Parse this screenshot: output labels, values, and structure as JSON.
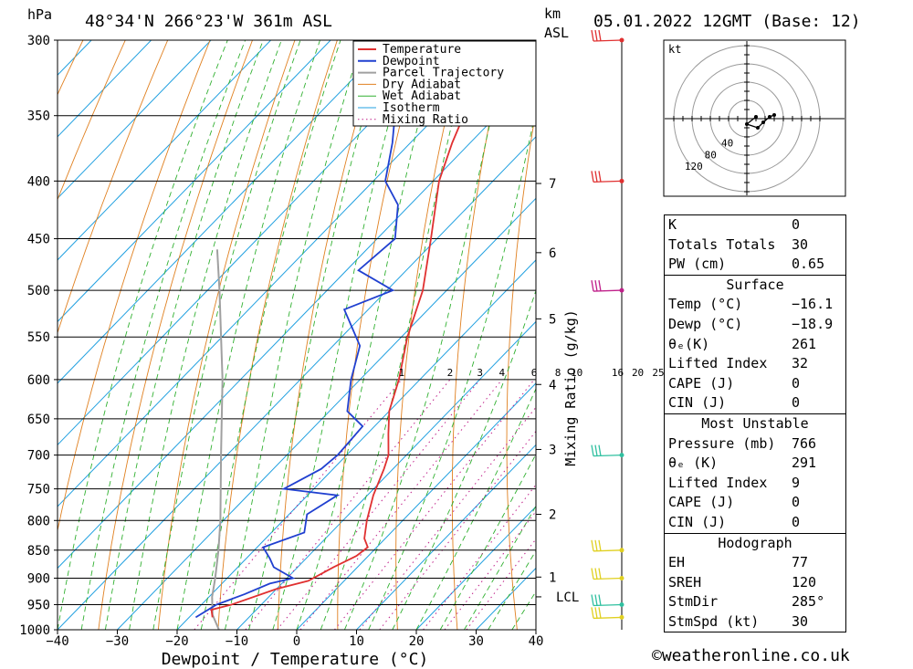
{
  "header": {
    "location": "48°34'N  266°23'W  361m  ASL",
    "pressure_unit": "hPa",
    "km_label": "km",
    "asl_label": "ASL",
    "datetime": "05.01.2022  12GMT  (Base: 12)"
  },
  "chart_data": {
    "type": "skew-t log-p",
    "xlabel": "Dewpoint / Temperature (°C)",
    "ylabel": "hPa",
    "right_axis_label": "Mixing Ratio (g/kg)",
    "xlim": [
      -40,
      40
    ],
    "ylim": [
      1000,
      300
    ],
    "x_ticks": [
      -40,
      -30,
      -20,
      -10,
      0,
      10,
      20,
      30,
      40
    ],
    "x_tick_labels": [
      "−40",
      "−30",
      "−20",
      "−10",
      "0",
      "10",
      "20",
      "30",
      "40"
    ],
    "pressure_levels": [
      300,
      350,
      400,
      450,
      500,
      550,
      600,
      650,
      700,
      750,
      800,
      850,
      900,
      950,
      1000
    ],
    "km_ticks": [
      {
        "km": 1,
        "p": 898
      },
      {
        "km": 2,
        "p": 790
      },
      {
        "km": 3,
        "p": 692
      },
      {
        "km": 4,
        "p": 606
      },
      {
        "km": 5,
        "p": 530
      },
      {
        "km": 6,
        "p": 463
      },
      {
        "km": 7,
        "p": 402
      }
    ],
    "lcl_label": "LCL",
    "lcl_p": 935,
    "mixing_ratios": [
      1,
      2,
      3,
      4,
      6,
      8,
      10,
      16,
      20,
      25
    ],
    "mixing_ratio_labels": [
      "1",
      "2",
      "3",
      "4",
      "6",
      "8",
      "10",
      "16",
      "20",
      "25"
    ],
    "legend": [
      "Temperature",
      "Dewpoint",
      "Parcel Trajectory",
      "Dry Adiabat",
      "Wet Adiabat",
      "Isotherm",
      "Mixing Ratio"
    ],
    "legend_position": "top-right",
    "colors": {
      "temperature": "#e03030",
      "dewpoint": "#2040d0",
      "parcel": "#a0a0a0",
      "dry_adiabat": "#e08020",
      "wet_adiabat": "#30b030",
      "isotherm": "#20a0e0",
      "mixing_ratio": "#c0208a"
    },
    "temperature": [
      {
        "p": 975,
        "t": -16.1
      },
      {
        "p": 960,
        "t": -17.5
      },
      {
        "p": 950,
        "t": -15.0
      },
      {
        "p": 920,
        "t": -10.0
      },
      {
        "p": 905,
        "t": -6.0
      },
      {
        "p": 880,
        "t": -4.0
      },
      {
        "p": 860,
        "t": -2.0
      },
      {
        "p": 845,
        "t": -1.5
      },
      {
        "p": 830,
        "t": -3.5
      },
      {
        "p": 800,
        "t": -6.0
      },
      {
        "p": 760,
        "t": -9.0
      },
      {
        "p": 720,
        "t": -11.5
      },
      {
        "p": 700,
        "t": -13.0
      },
      {
        "p": 670,
        "t": -16.5
      },
      {
        "p": 640,
        "t": -20.0
      },
      {
        "p": 600,
        "t": -23.5
      },
      {
        "p": 550,
        "t": -29.0
      },
      {
        "p": 500,
        "t": -34.0
      },
      {
        "p": 450,
        "t": -41.0
      },
      {
        "p": 400,
        "t": -49.0
      },
      {
        "p": 370,
        "t": -53.0
      },
      {
        "p": 350,
        "t": -55.5
      },
      {
        "p": 300,
        "t": -63.0
      }
    ],
    "dewpoint": [
      {
        "p": 975,
        "t": -18.9
      },
      {
        "p": 950,
        "t": -17.5
      },
      {
        "p": 930,
        "t": -14.5
      },
      {
        "p": 910,
        "t": -12.0
      },
      {
        "p": 900,
        "t": -9.0
      },
      {
        "p": 880,
        "t": -14.0
      },
      {
        "p": 865,
        "t": -16.0
      },
      {
        "p": 845,
        "t": -19.0
      },
      {
        "p": 820,
        "t": -14.5
      },
      {
        "p": 790,
        "t": -17.0
      },
      {
        "p": 760,
        "t": -15.0
      },
      {
        "p": 750,
        "t": -25.0
      },
      {
        "p": 720,
        "t": -22.0
      },
      {
        "p": 700,
        "t": -21.5
      },
      {
        "p": 660,
        "t": -22.0
      },
      {
        "p": 640,
        "t": -27.0
      },
      {
        "p": 600,
        "t": -31.5
      },
      {
        "p": 560,
        "t": -35.5
      },
      {
        "p": 520,
        "t": -44.0
      },
      {
        "p": 500,
        "t": -39.0
      },
      {
        "p": 480,
        "t": -48.0
      },
      {
        "p": 450,
        "t": -47.0
      },
      {
        "p": 420,
        "t": -52.0
      },
      {
        "p": 400,
        "t": -58.0
      },
      {
        "p": 370,
        "t": -63.0
      },
      {
        "p": 350,
        "t": -67.0
      },
      {
        "p": 300,
        "t": -77.0
      }
    ],
    "parcel": [
      {
        "p": 1000,
        "t": -13.0
      },
      {
        "p": 970,
        "t": -16.5
      },
      {
        "p": 935,
        "t": -19.5
      },
      {
        "p": 900,
        "t": -22.0
      },
      {
        "p": 850,
        "t": -26.0
      },
      {
        "p": 800,
        "t": -30.5
      },
      {
        "p": 700,
        "t": -41.0
      },
      {
        "p": 600,
        "t": -53.0
      },
      {
        "p": 500,
        "t": -68.0
      },
      {
        "p": 460,
        "t": -75.0
      }
    ],
    "wind_barbs": [
      {
        "p": 300,
        "color": "#e03030"
      },
      {
        "p": 400,
        "color": "#e03030"
      },
      {
        "p": 500,
        "color": "#c0208a"
      },
      {
        "p": 700,
        "color": "#30c0a0"
      },
      {
        "p": 850,
        "color": "#e0d020"
      },
      {
        "p": 900,
        "color": "#e0d020"
      },
      {
        "p": 950,
        "color": "#30c0a0"
      },
      {
        "p": 975,
        "color": "#e0d020"
      }
    ],
    "hodograph": {
      "unit_label": "kt",
      "ring_labels": [
        "40",
        "80",
        "120"
      ],
      "u_kt": [
        10,
        0,
        12,
        18,
        25,
        30
      ],
      "v_kt": [
        2,
        -6,
        -10,
        -4,
        2,
        4
      ]
    }
  },
  "table": {
    "k_label": "K",
    "k_value": "0",
    "tt_label": "Totals Totals",
    "tt_value": "30",
    "pw_label": "PW (cm)",
    "pw_value": "0.65",
    "surface": {
      "title": "Surface",
      "temp_label": "Temp (°C)",
      "temp_value": "−16.1",
      "dewp_label": "Dewp (°C)",
      "dewp_value": "−18.9",
      "theta_label": "θₑ(K)",
      "theta_value": "261",
      "li_label": "Lifted Index",
      "li_value": "32",
      "cape_label": "CAPE (J)",
      "cape_value": "0",
      "cin_label": "CIN (J)",
      "cin_value": "0"
    },
    "most_unstable": {
      "title": "Most Unstable",
      "pres_label": "Pressure (mb)",
      "pres_value": "766",
      "theta_label": "θₑ (K)",
      "theta_value": "291",
      "li_label": "Lifted Index",
      "li_value": "9",
      "cape_label": "CAPE (J)",
      "cape_value": "0",
      "cin_label": "CIN (J)",
      "cin_value": "0"
    },
    "hodograph": {
      "title": "Hodograph",
      "eh_label": "EH",
      "eh_value": "77",
      "sreh_label": "SREH",
      "sreh_value": "120",
      "stmdir_label": "StmDir",
      "stmdir_value": "285°",
      "stmspd_label": "StmSpd (kt)",
      "stmspd_value": "30"
    }
  },
  "footer": "©weatheronline.co.uk"
}
